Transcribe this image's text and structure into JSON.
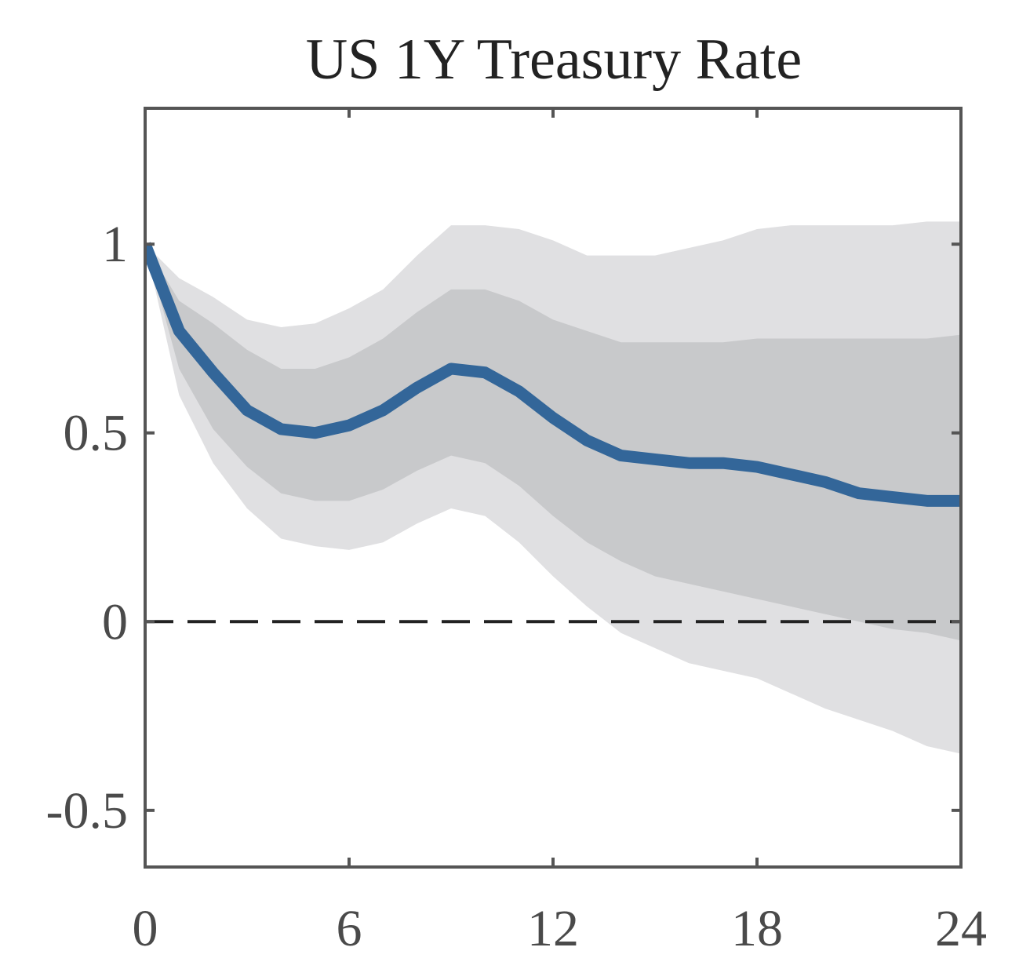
{
  "chart_data": {
    "type": "line",
    "title": "US 1Y Treasury Rate",
    "xlabel": "",
    "ylabel": "",
    "xlim": [
      0,
      24
    ],
    "ylim": [
      -0.65,
      1.36
    ],
    "x_ticks": [
      0,
      6,
      12,
      18,
      24
    ],
    "x_tick_labels": [
      "0",
      "6",
      "12",
      "18",
      "24"
    ],
    "y_ticks": [
      -0.5,
      0,
      0.5,
      1
    ],
    "y_tick_labels": [
      "-0.5",
      "0",
      "0.5",
      "1"
    ],
    "grid": false,
    "legend": "none",
    "x": [
      0,
      1,
      2,
      3,
      4,
      5,
      6,
      7,
      8,
      9,
      10,
      11,
      12,
      13,
      14,
      15,
      16,
      17,
      18,
      19,
      20,
      21,
      22,
      23,
      24
    ],
    "series": [
      {
        "role": "point-estimate",
        "values": [
          1.0,
          0.77,
          0.66,
          0.56,
          0.51,
          0.5,
          0.52,
          0.56,
          0.62,
          0.67,
          0.66,
          0.61,
          0.54,
          0.48,
          0.44,
          0.43,
          0.42,
          0.42,
          0.41,
          0.39,
          0.37,
          0.34,
          0.33,
          0.32,
          0.32
        ],
        "color": "#336699"
      }
    ],
    "bands": [
      {
        "role": "outer",
        "lower": [
          1.0,
          0.6,
          0.42,
          0.3,
          0.22,
          0.2,
          0.19,
          0.21,
          0.26,
          0.3,
          0.28,
          0.21,
          0.12,
          0.04,
          -0.03,
          -0.07,
          -0.11,
          -0.13,
          -0.15,
          -0.19,
          -0.23,
          -0.26,
          -0.29,
          -0.33,
          -0.35
        ],
        "upper": [
          1.0,
          0.91,
          0.86,
          0.8,
          0.78,
          0.79,
          0.83,
          0.88,
          0.97,
          1.05,
          1.05,
          1.04,
          1.01,
          0.97,
          0.97,
          0.97,
          0.99,
          1.01,
          1.04,
          1.05,
          1.05,
          1.05,
          1.05,
          1.06,
          1.06
        ],
        "color": "#e0e0e2"
      },
      {
        "role": "inner",
        "lower": [
          1.0,
          0.67,
          0.51,
          0.41,
          0.34,
          0.32,
          0.32,
          0.35,
          0.4,
          0.44,
          0.42,
          0.36,
          0.28,
          0.21,
          0.16,
          0.12,
          0.1,
          0.08,
          0.06,
          0.04,
          0.02,
          0.0,
          -0.02,
          -0.03,
          -0.05
        ],
        "upper": [
          1.0,
          0.85,
          0.79,
          0.72,
          0.67,
          0.67,
          0.7,
          0.75,
          0.82,
          0.88,
          0.88,
          0.85,
          0.8,
          0.77,
          0.74,
          0.74,
          0.74,
          0.74,
          0.75,
          0.75,
          0.75,
          0.75,
          0.75,
          0.75,
          0.76
        ],
        "color": "#c8c9cb"
      }
    ],
    "reference_line": {
      "y": 0,
      "style": "dashed",
      "color": "#222222"
    },
    "axis_color": "#555555"
  }
}
